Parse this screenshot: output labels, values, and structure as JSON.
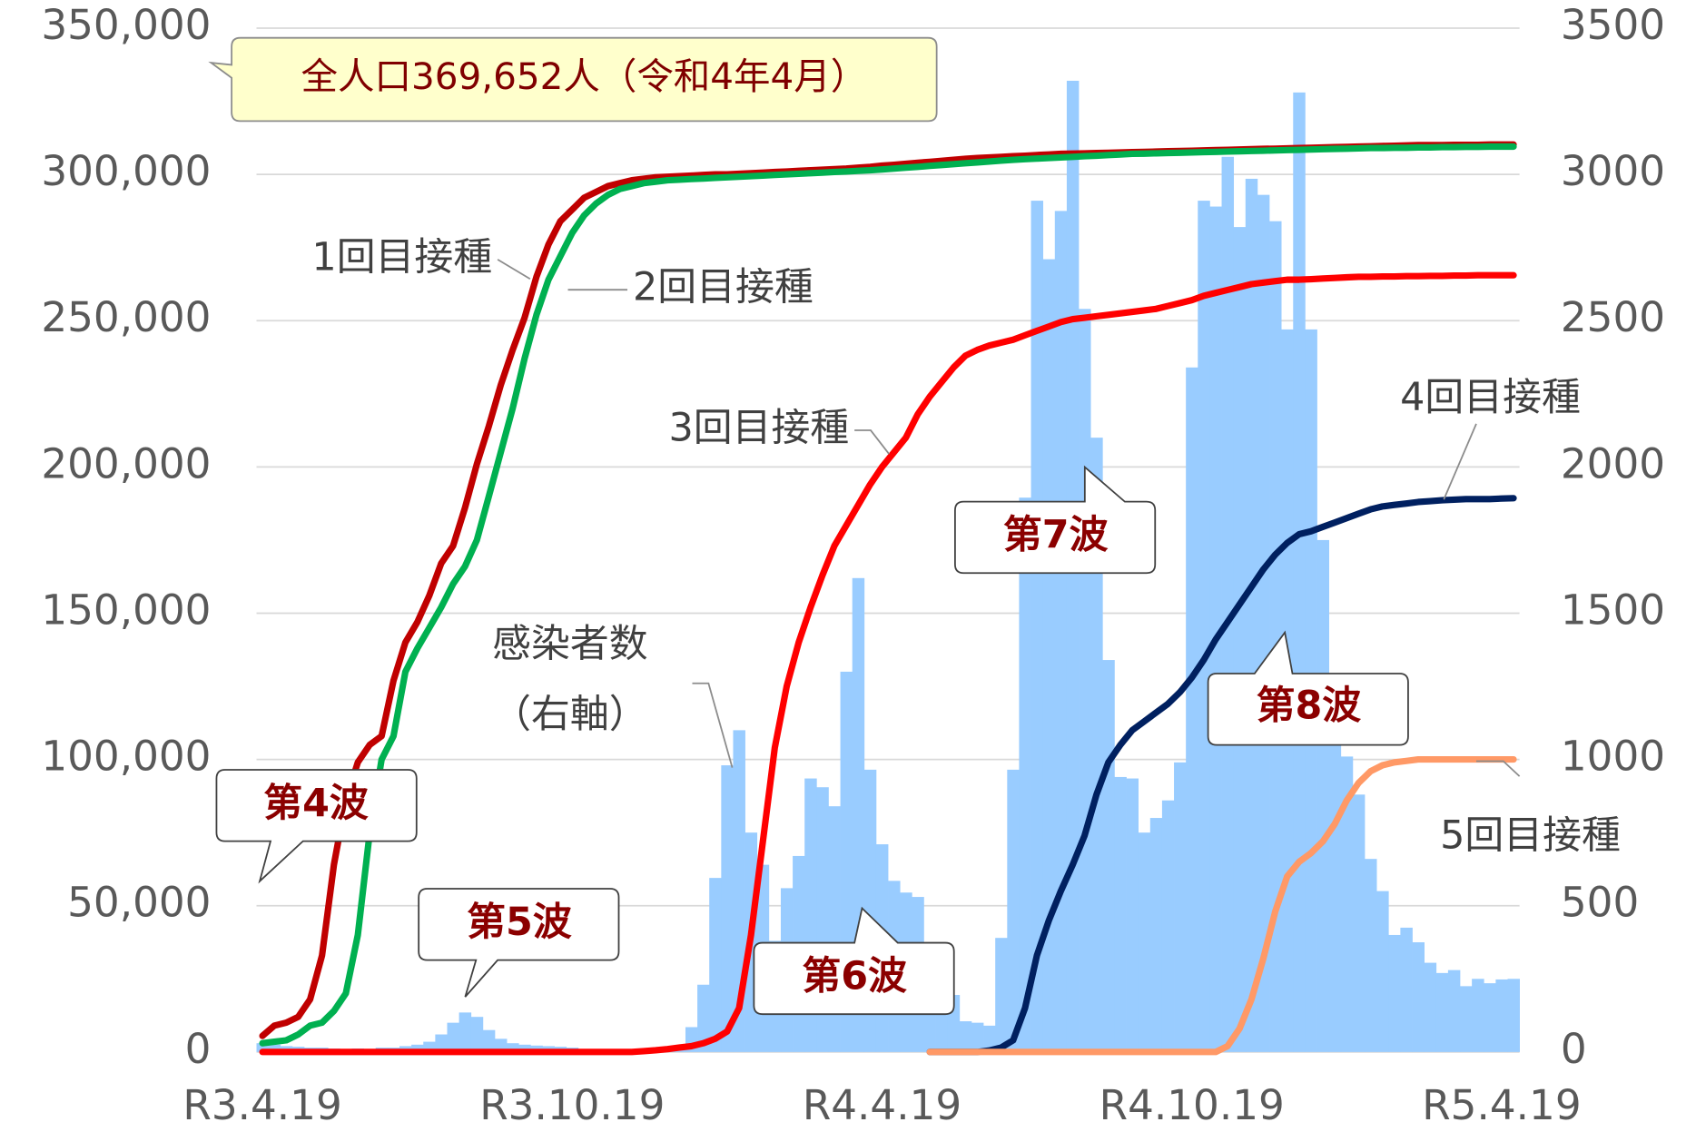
{
  "chart_data": {
    "type": "combo",
    "categories": [
      "R3.4.19",
      null,
      null,
      null,
      null,
      null,
      null,
      null,
      null,
      null,
      null,
      null,
      null,
      null,
      null,
      null,
      null,
      null,
      null,
      null,
      null,
      null,
      null,
      null,
      null,
      null,
      "R3.10.19",
      null,
      null,
      null,
      null,
      null,
      null,
      null,
      null,
      null,
      null,
      null,
      null,
      null,
      null,
      null,
      null,
      null,
      null,
      null,
      null,
      null,
      null,
      null,
      null,
      null,
      "R4.4.19",
      null,
      null,
      null,
      null,
      null,
      null,
      null,
      null,
      null,
      null,
      null,
      null,
      null,
      null,
      null,
      null,
      null,
      null,
      null,
      null,
      null,
      null,
      null,
      null,
      null,
      "R4.10.19",
      null,
      null,
      null,
      null,
      null,
      null,
      null,
      null,
      null,
      null,
      null,
      null,
      null,
      null,
      null,
      null,
      null,
      null,
      null,
      null,
      null,
      null,
      null,
      null,
      null,
      "R5.4.19",
      null
    ],
    "ylim": [
      0,
      350000
    ],
    "yticks": [
      0,
      {
        "value": 50000,
        "label": "50,000"
      },
      {
        "value": 100000,
        "label": "100,000"
      },
      {
        "value": 150000,
        "label": "150,000"
      },
      {
        "value": 200000,
        "label": "200,000"
      },
      {
        "value": 250000,
        "label": "250,000"
      },
      {
        "value": 300000,
        "label": "300,000"
      },
      {
        "value": 350000,
        "label": "350,000"
      }
    ],
    "y2lim": [
      0,
      3500
    ],
    "y2ticks": [
      0,
      500,
      1000,
      1500,
      2000,
      2500,
      3000,
      3500
    ],
    "grid": true,
    "y2_label": "（右軸）",
    "annotations": [
      "全人口369,652人（令和4年4月）",
      "第4波",
      "第5波",
      "第6波",
      "第7波",
      "第8波"
    ],
    "series": [
      {
        "name": "感染者数",
        "type": "bar",
        "axis": "y2",
        "color": "#99ccff",
        "values": [
          30,
          25,
          20,
          18,
          15,
          15,
          12,
          10,
          12,
          10,
          15,
          15,
          20,
          25,
          35,
          60,
          100,
          135,
          120,
          75,
          45,
          30,
          25,
          22,
          20,
          18,
          15,
          10,
          8,
          8,
          6,
          5,
          5,
          5,
          6,
          8,
          85,
          230,
          595,
          980,
          1100,
          750,
          640,
          380,
          560,
          670,
          935,
          905,
          840,
          1300,
          1620,
          965,
          710,
          585,
          545,
          530,
          345,
          250,
          195,
          105,
          100,
          90,
          390,
          965,
          1895,
          2910,
          2710,
          2875,
          3320,
          2540,
          2100,
          1340,
          940,
          935,
          750,
          800,
          860,
          990,
          2340,
          2910,
          2890,
          3060,
          2820,
          2985,
          2930,
          2840,
          2470,
          3280,
          2470,
          1750,
          1230,
          1010,
          880,
          660,
          550,
          400,
          425,
          375,
          305,
          270,
          280,
          225,
          250,
          235,
          248,
          250
        ]
      },
      {
        "name": "1回目接種",
        "type": "line",
        "color": "#c00000",
        "values": [
          5500,
          9000,
          10000,
          12000,
          18000,
          33000,
          64000,
          86000,
          99000,
          105000,
          108000,
          127000,
          140000,
          147000,
          156000,
          167000,
          173000,
          186000,
          201000,
          214000,
          228000,
          240000,
          251000,
          265000,
          276000,
          284000,
          288000,
          292000,
          294000,
          296000,
          297000,
          298000,
          298500,
          299000,
          299200,
          299400,
          299600,
          299800,
          300000,
          300000,
          300200,
          300400,
          300600,
          300800,
          301000,
          301200,
          301400,
          301600,
          301800,
          302000,
          302300,
          302600,
          303000,
          303300,
          303600,
          304000,
          304300,
          304600,
          305000,
          305300,
          305600,
          305800,
          306000,
          306200,
          306400,
          306600,
          306800,
          307000,
          307100,
          307200,
          307300,
          307400,
          307500,
          307600,
          307700,
          307800,
          307900,
          308000,
          308100,
          308200,
          308300,
          308400,
          308500,
          308600,
          308700,
          308800,
          308900,
          309000,
          309100,
          309200,
          309300,
          309400,
          309500,
          309600,
          309700,
          309800,
          309900,
          310000,
          310000,
          310000,
          310100,
          310100,
          310100,
          310200,
          310200,
          310200
        ]
      },
      {
        "name": "2回目接種",
        "type": "line",
        "color": "#00b050",
        "values": [
          3000,
          3500,
          4000,
          6000,
          9000,
          10000,
          14000,
          20000,
          40000,
          75000,
          100000,
          108000,
          130000,
          138000,
          145000,
          152000,
          160000,
          166000,
          175000,
          190000,
          205000,
          220000,
          237000,
          252000,
          264000,
          272000,
          280000,
          286000,
          290000,
          293000,
          295000,
          296000,
          297000,
          297500,
          298000,
          298200,
          298400,
          298600,
          298800,
          299000,
          299200,
          299400,
          299600,
          299800,
          300000,
          300200,
          300400,
          300600,
          300800,
          301000,
          301200,
          301400,
          301700,
          302000,
          302300,
          302600,
          302900,
          303200,
          303500,
          303800,
          304100,
          304400,
          304700,
          305000,
          305200,
          305400,
          305600,
          305800,
          306000,
          306200,
          306400,
          306600,
          306800,
          307000,
          307100,
          307200,
          307300,
          307400,
          307500,
          307600,
          307700,
          307800,
          307900,
          308000,
          308100,
          308200,
          308300,
          308400,
          308500,
          308600,
          308700,
          308800,
          308900,
          309000,
          309000,
          309100,
          309100,
          309200,
          309200,
          309300,
          309300,
          309400,
          309400,
          309500,
          309500,
          309500
        ]
      },
      {
        "name": "3回目接種",
        "type": "line",
        "color": "#ff0000",
        "values": [
          0,
          0,
          0,
          0,
          0,
          0,
          0,
          0,
          0,
          0,
          0,
          0,
          0,
          0,
          0,
          0,
          0,
          0,
          0,
          0,
          0,
          0,
          0,
          0,
          0,
          0,
          0,
          0,
          0,
          0,
          0,
          0,
          300,
          600,
          1000,
          1500,
          2000,
          3000,
          4500,
          7000,
          15000,
          40000,
          72000,
          104000,
          125000,
          140000,
          152000,
          163000,
          173000,
          180000,
          187000,
          194000,
          200000,
          205000,
          210000,
          218000,
          224000,
          229000,
          234000,
          238000,
          240000,
          241500,
          242500,
          243500,
          245000,
          246500,
          248000,
          249500,
          250500,
          251000,
          251500,
          252000,
          252500,
          253000,
          253500,
          254000,
          255000,
          256000,
          257000,
          258500,
          259500,
          260500,
          261500,
          262500,
          263000,
          263500,
          264000,
          264000,
          264200,
          264400,
          264600,
          264800,
          265000,
          265000,
          265100,
          265100,
          265200,
          265200,
          265300,
          265300,
          265400,
          265400,
          265500,
          265500,
          265500,
          265500
        ]
      },
      {
        "name": "4回目接種",
        "type": "line",
        "color": "#002060",
        "values": [
          null,
          null,
          null,
          null,
          null,
          null,
          null,
          null,
          null,
          null,
          null,
          null,
          null,
          null,
          null,
          null,
          null,
          null,
          null,
          null,
          null,
          null,
          null,
          null,
          null,
          null,
          null,
          null,
          null,
          null,
          null,
          null,
          null,
          null,
          null,
          null,
          null,
          null,
          null,
          null,
          null,
          null,
          null,
          null,
          null,
          null,
          null,
          null,
          null,
          null,
          null,
          null,
          null,
          null,
          null,
          null,
          0,
          0,
          0,
          0,
          0,
          500,
          1500,
          4000,
          15000,
          33000,
          45000,
          55000,
          64000,
          74000,
          88000,
          99000,
          105000,
          110000,
          113000,
          116000,
          119000,
          123000,
          128000,
          134000,
          141000,
          147000,
          153000,
          159000,
          165000,
          170000,
          174000,
          177000,
          178000,
          179500,
          181000,
          182500,
          184000,
          185500,
          186500,
          187000,
          187500,
          188000,
          188300,
          188600,
          188800,
          189000,
          189000,
          189000,
          189200,
          189300
        ]
      },
      {
        "name": "5回目接種",
        "type": "line",
        "color": "#ff9966",
        "values": [
          null,
          null,
          null,
          null,
          null,
          null,
          null,
          null,
          null,
          null,
          null,
          null,
          null,
          null,
          null,
          null,
          null,
          null,
          null,
          null,
          null,
          null,
          null,
          null,
          null,
          null,
          null,
          null,
          null,
          null,
          null,
          null,
          null,
          null,
          null,
          null,
          null,
          null,
          null,
          null,
          null,
          null,
          null,
          null,
          null,
          null,
          null,
          null,
          null,
          null,
          null,
          null,
          null,
          null,
          null,
          null,
          0,
          0,
          0,
          0,
          0,
          0,
          0,
          0,
          0,
          0,
          0,
          0,
          0,
          0,
          0,
          0,
          0,
          0,
          0,
          0,
          0,
          0,
          0,
          0,
          0,
          2000,
          8000,
          18000,
          32000,
          48000,
          60000,
          65000,
          68000,
          72000,
          78000,
          86000,
          92000,
          96000,
          98000,
          99000,
          99500,
          100000,
          100000,
          100000,
          100000,
          100000,
          100000,
          100000,
          100000,
          100000
        ]
      }
    ]
  }
}
